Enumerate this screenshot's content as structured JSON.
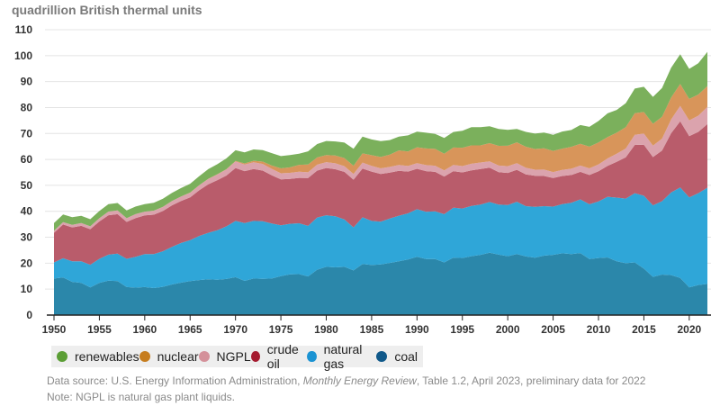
{
  "chart_data": {
    "type": "area",
    "stacked": true,
    "title": "",
    "ylabel": "quadrillion British thermal units",
    "xlabel": "",
    "xlim": [
      1950,
      2022
    ],
    "ylim": [
      0,
      110
    ],
    "yticks": [
      0,
      10,
      20,
      30,
      40,
      50,
      60,
      70,
      80,
      90,
      100,
      110
    ],
    "xticks": [
      1950,
      1955,
      1960,
      1965,
      1970,
      1975,
      1980,
      1985,
      1990,
      1995,
      2000,
      2005,
      2010,
      2015,
      2020
    ],
    "grid": "horizontal",
    "legend_position": "bottom",
    "x_start": 1950,
    "series": [
      {
        "name": "coal",
        "color": "#2b87aa",
        "legend_color": "#10598a",
        "values": [
          14.1,
          14.5,
          12.8,
          12.4,
          10.7,
          12.4,
          13.3,
          13.1,
          10.8,
          10.6,
          10.8,
          10.4,
          10.9,
          11.8,
          12.5,
          13.1,
          13.5,
          13.8,
          13.6,
          13.9,
          14.6,
          13.2,
          14.1,
          14.0,
          14.1,
          15.0,
          15.7,
          15.8,
          14.9,
          17.5,
          18.6,
          18.4,
          18.6,
          17.2,
          19.7,
          19.3,
          19.5,
          20.1,
          20.7,
          21.4,
          22.5,
          21.6,
          21.6,
          20.3,
          22.1,
          22.0,
          22.7,
          23.2,
          24.0,
          23.3,
          22.7,
          23.5,
          22.6,
          22.1,
          22.9,
          23.2,
          23.8,
          23.5,
          23.9,
          21.6,
          22.0,
          22.2,
          20.7,
          20.0,
          20.3,
          17.9,
          14.7,
          15.6,
          15.4,
          14.3,
          10.7,
          11.6,
          12.0
        ]
      },
      {
        "name": "natural gas",
        "color": "#2fa6d8",
        "legend_color": "#1b93d3",
        "values": [
          6.2,
          7.4,
          7.9,
          8.3,
          8.7,
          9.3,
          10.0,
          10.6,
          10.9,
          11.9,
          12.7,
          13.1,
          13.7,
          14.5,
          15.3,
          15.8,
          17.0,
          17.9,
          19.1,
          20.3,
          21.7,
          22.3,
          22.2,
          22.2,
          21.2,
          19.6,
          19.5,
          19.6,
          19.5,
          20.1,
          19.9,
          19.7,
          18.3,
          16.6,
          18.0,
          17.0,
          16.5,
          17.1,
          17.6,
          17.8,
          18.3,
          18.2,
          18.4,
          18.6,
          19.3,
          19.1,
          19.4,
          19.4,
          19.6,
          19.3,
          19.7,
          20.2,
          19.4,
          19.6,
          19.1,
          18.6,
          19.0,
          19.8,
          20.7,
          21.1,
          21.8,
          23.4,
          24.6,
          24.9,
          26.7,
          28.1,
          27.6,
          28.3,
          31.9,
          34.9,
          34.7,
          35.4,
          37.1
        ]
      },
      {
        "name": "crude oil",
        "color": "#b95c6b",
        "legend_color": "#a51b30",
        "values": [
          11.4,
          13.0,
          13.1,
          13.7,
          13.7,
          14.4,
          15.2,
          15.2,
          14.2,
          14.9,
          14.9,
          15.2,
          15.5,
          16.0,
          16.2,
          16.5,
          17.6,
          18.7,
          19.3,
          19.6,
          20.4,
          20.0,
          20.0,
          19.5,
          18.6,
          17.7,
          17.3,
          17.5,
          18.4,
          18.1,
          18.2,
          18.1,
          18.3,
          18.4,
          18.8,
          19.0,
          18.4,
          17.7,
          17.3,
          16.1,
          15.6,
          15.7,
          15.2,
          14.5,
          14.1,
          13.9,
          13.7,
          13.7,
          13.2,
          12.5,
          12.4,
          12.3,
          12.2,
          12.0,
          11.6,
          11.0,
          10.8,
          10.7,
          10.6,
          11.3,
          11.6,
          11.9,
          13.8,
          15.9,
          18.6,
          19.7,
          18.6,
          19.5,
          22.8,
          25.5,
          23.6,
          23.6,
          24.5
        ]
      },
      {
        "name": "NGPL",
        "color": "#dba3ad",
        "legend_color": "#d4919a",
        "values": [
          0.83,
          0.93,
          0.99,
          1.06,
          1.11,
          1.24,
          1.39,
          1.42,
          1.42,
          1.55,
          1.46,
          1.54,
          1.59,
          1.67,
          1.71,
          1.77,
          1.89,
          2.04,
          2.18,
          2.31,
          2.51,
          2.54,
          2.6,
          2.57,
          2.47,
          2.37,
          2.33,
          2.33,
          2.25,
          2.29,
          2.25,
          2.31,
          2.19,
          2.18,
          2.27,
          2.24,
          2.15,
          2.22,
          2.26,
          2.16,
          2.18,
          2.31,
          2.36,
          2.41,
          2.39,
          2.44,
          2.53,
          2.5,
          2.42,
          2.53,
          2.61,
          2.55,
          2.56,
          2.35,
          2.47,
          2.33,
          2.36,
          2.41,
          2.42,
          2.57,
          2.69,
          2.88,
          3.13,
          3.38,
          3.86,
          4.26,
          4.4,
          4.6,
          5.29,
          5.93,
          6.06,
          6.27,
          6.61
        ]
      },
      {
        "name": "nuclear",
        "color": "#d8955a",
        "legend_color": "#c67d1f",
        "values": [
          0,
          0,
          0,
          0,
          0,
          0,
          0,
          0,
          0.002,
          0.002,
          0.006,
          0.02,
          0.026,
          0.038,
          0.04,
          0.043,
          0.064,
          0.088,
          0.142,
          0.154,
          0.239,
          0.413,
          0.584,
          0.91,
          1.27,
          1.9,
          2.11,
          2.7,
          3.02,
          2.78,
          2.74,
          3.01,
          3.13,
          3.2,
          3.55,
          4.08,
          4.38,
          4.75,
          5.59,
          5.6,
          6.1,
          6.42,
          6.48,
          6.41,
          6.69,
          7.08,
          7.09,
          6.6,
          7.07,
          7.61,
          7.86,
          8.03,
          8.14,
          7.96,
          8.22,
          8.16,
          8.21,
          8.46,
          8.43,
          8.36,
          8.43,
          8.27,
          8.06,
          8.27,
          8.34,
          8.34,
          8.43,
          8.42,
          8.44,
          8.45,
          8.25,
          8.13,
          8.06
        ]
      },
      {
        "name": "renewables",
        "color": "#7bb05c",
        "legend_color": "#5b9e35",
        "values": [
          2.98,
          2.96,
          2.94,
          2.81,
          2.75,
          2.78,
          2.85,
          2.87,
          3.02,
          2.9,
          2.93,
          3.01,
          3.16,
          3.08,
          3.22,
          3.4,
          3.45,
          3.73,
          3.82,
          4.14,
          4.08,
          4.27,
          4.38,
          4.43,
          4.77,
          4.72,
          4.77,
          4.25,
          5.04,
          5.17,
          5.43,
          5.41,
          5.98,
          6.5,
          6.44,
          6.08,
          6.12,
          5.6,
          5.33,
          6.21,
          6.04,
          6.07,
          5.82,
          6.08,
          5.99,
          6.56,
          7.01,
          7.01,
          6.49,
          6.51,
          6.1,
          5.16,
          5.73,
          5.94,
          6.06,
          6.2,
          6.59,
          6.49,
          7.19,
          7.62,
          8.3,
          9.11,
          8.78,
          9.22,
          9.49,
          9.71,
          10.37,
          11.08,
          11.5,
          11.46,
          11.6,
          12.1,
          13.2
        ]
      }
    ],
    "legend_order": [
      "renewables",
      "nuclear",
      "NGPL",
      "crude oil",
      "natural gas",
      "coal"
    ]
  },
  "source": {
    "prefix": "Data source: U.S. Energy Information Administration, ",
    "publication": "Monthly Energy Review",
    "suffix": ", Table 1.2, April 2023, preliminary data for 2022",
    "note": "Note: NGPL is natural gas plant liquids."
  }
}
